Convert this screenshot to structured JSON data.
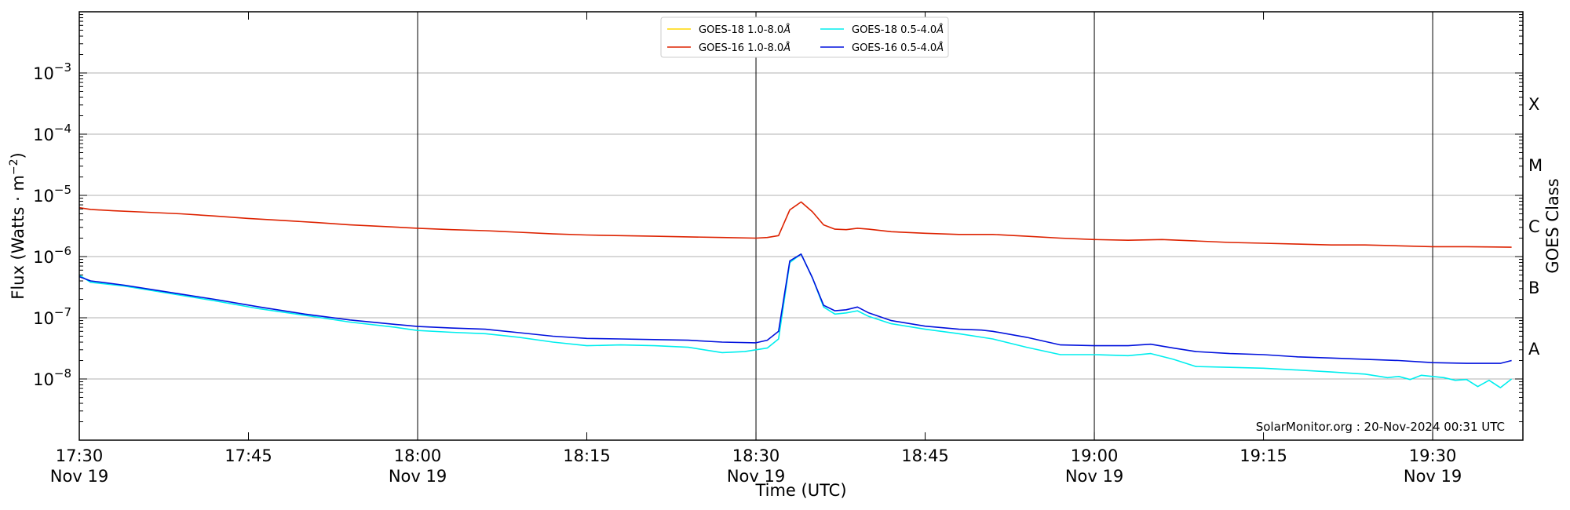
{
  "chart_data": {
    "type": "line",
    "xlabel": "Time (UTC)",
    "ylabel_main": "Flux (Watts · m",
    "ylabel_exp": "−2",
    "ylabel_close": ")",
    "right_axis_label": "GOES Class",
    "x_range_minutes": [
      0,
      128
    ],
    "y_log_range": [
      -9,
      -2
    ],
    "x_ticks": [
      {
        "t": 0,
        "time": "17:30",
        "date": "Nov 19"
      },
      {
        "t": 15,
        "time": "17:45",
        "date": ""
      },
      {
        "t": 30,
        "time": "18:00",
        "date": "Nov 19"
      },
      {
        "t": 45,
        "time": "18:15",
        "date": ""
      },
      {
        "t": 60,
        "time": "18:30",
        "date": "Nov 19"
      },
      {
        "t": 75,
        "time": "18:45",
        "date": ""
      },
      {
        "t": 90,
        "time": "19:00",
        "date": "Nov 19"
      },
      {
        "t": 105,
        "time": "19:15",
        "date": ""
      },
      {
        "t": 120,
        "time": "19:30",
        "date": "Nov 19"
      }
    ],
    "vertical_lines": [
      30,
      60,
      90,
      120
    ],
    "y_ticks": [
      {
        "exp": -8,
        "base": "10",
        "sup": "−8"
      },
      {
        "exp": -7,
        "base": "10",
        "sup": "−7"
      },
      {
        "exp": -6,
        "base": "10",
        "sup": "−6"
      },
      {
        "exp": -5,
        "base": "10",
        "sup": "−5"
      },
      {
        "exp": -4,
        "base": "10",
        "sup": "−4"
      },
      {
        "exp": -3,
        "base": "10",
        "sup": "−3"
      }
    ],
    "goes_classes": [
      {
        "label": "A",
        "exp": -7.5
      },
      {
        "label": "B",
        "exp": -6.5
      },
      {
        "label": "C",
        "exp": -5.5
      },
      {
        "label": "M",
        "exp": -4.5
      },
      {
        "label": "X",
        "exp": -3.5
      }
    ],
    "grid": "horizontal",
    "legend_position": "top-center",
    "credit": "SolarMonitor.org : 20-Nov-2024 00:31 UTC",
    "series": [
      {
        "name": "GOES-18 1.0-8.0",
        "name_unit": "Å",
        "color": "#ffd700",
        "points": []
      },
      {
        "name": "GOES-16 1.0-8.0",
        "name_unit": "Å",
        "color": "#dd2200",
        "points": [
          [
            0,
            6.3e-06
          ],
          [
            1,
            5.9e-06
          ],
          [
            3,
            5.6e-06
          ],
          [
            6,
            5.3e-06
          ],
          [
            9,
            5e-06
          ],
          [
            12,
            4.6e-06
          ],
          [
            15,
            4.2e-06
          ],
          [
            18,
            3.9e-06
          ],
          [
            21,
            3.6e-06
          ],
          [
            24,
            3.3e-06
          ],
          [
            27,
            3.1e-06
          ],
          [
            30,
            2.9e-06
          ],
          [
            33,
            2.75e-06
          ],
          [
            36,
            2.65e-06
          ],
          [
            39,
            2.5e-06
          ],
          [
            42,
            2.35e-06
          ],
          [
            45,
            2.25e-06
          ],
          [
            48,
            2.2e-06
          ],
          [
            51,
            2.15e-06
          ],
          [
            54,
            2.1e-06
          ],
          [
            57,
            2.05e-06
          ],
          [
            60,
            2e-06
          ],
          [
            61,
            2.05e-06
          ],
          [
            62,
            2.2e-06
          ],
          [
            63,
            5.8e-06
          ],
          [
            64,
            7.8e-06
          ],
          [
            65,
            5.4e-06
          ],
          [
            66,
            3.3e-06
          ],
          [
            67,
            2.8e-06
          ],
          [
            68,
            2.75e-06
          ],
          [
            69,
            2.9e-06
          ],
          [
            70,
            2.8e-06
          ],
          [
            72,
            2.55e-06
          ],
          [
            75,
            2.4e-06
          ],
          [
            78,
            2.3e-06
          ],
          [
            81,
            2.3e-06
          ],
          [
            84,
            2.15e-06
          ],
          [
            87,
            2e-06
          ],
          [
            90,
            1.9e-06
          ],
          [
            93,
            1.85e-06
          ],
          [
            96,
            1.9e-06
          ],
          [
            99,
            1.8e-06
          ],
          [
            102,
            1.7e-06
          ],
          [
            105,
            1.65e-06
          ],
          [
            108,
            1.6e-06
          ],
          [
            111,
            1.55e-06
          ],
          [
            114,
            1.55e-06
          ],
          [
            117,
            1.5e-06
          ],
          [
            120,
            1.45e-06
          ],
          [
            123,
            1.45e-06
          ],
          [
            127,
            1.42e-06
          ]
        ]
      },
      {
        "name": "GOES-18 0.5-4.0",
        "name_unit": "Å",
        "color": "#00eeee",
        "points": [
          [
            0,
            5e-07
          ],
          [
            1,
            3.8e-07
          ],
          [
            4,
            3.3e-07
          ],
          [
            8,
            2.5e-07
          ],
          [
            12,
            1.9e-07
          ],
          [
            16,
            1.4e-07
          ],
          [
            20,
            1.1e-07
          ],
          [
            24,
            8.5e-08
          ],
          [
            28,
            7e-08
          ],
          [
            30,
            6.2e-08
          ],
          [
            33,
            5.8e-08
          ],
          [
            36,
            5.5e-08
          ],
          [
            39,
            4.8e-08
          ],
          [
            42,
            4e-08
          ],
          [
            45,
            3.5e-08
          ],
          [
            48,
            3.6e-08
          ],
          [
            51,
            3.5e-08
          ],
          [
            54,
            3.3e-08
          ],
          [
            57,
            2.7e-08
          ],
          [
            59,
            2.8e-08
          ],
          [
            60,
            3e-08
          ],
          [
            61,
            3.2e-08
          ],
          [
            62,
            4.5e-08
          ],
          [
            63,
            8e-07
          ],
          [
            64,
            1.1e-06
          ],
          [
            65,
            4.5e-07
          ],
          [
            66,
            1.5e-07
          ],
          [
            67,
            1.15e-07
          ],
          [
            68,
            1.2e-07
          ],
          [
            69,
            1.3e-07
          ],
          [
            70,
            1.05e-07
          ],
          [
            72,
            8e-08
          ],
          [
            75,
            6.5e-08
          ],
          [
            78,
            5.5e-08
          ],
          [
            81,
            4.5e-08
          ],
          [
            84,
            3.3e-08
          ],
          [
            87,
            2.5e-08
          ],
          [
            90,
            2.5e-08
          ],
          [
            93,
            2.4e-08
          ],
          [
            95,
            2.6e-08
          ],
          [
            97,
            2.1e-08
          ],
          [
            99,
            1.6e-08
          ],
          [
            102,
            1.55e-08
          ],
          [
            105,
            1.5e-08
          ],
          [
            108,
            1.4e-08
          ],
          [
            111,
            1.3e-08
          ],
          [
            114,
            1.2e-08
          ],
          [
            116,
            1.05e-08
          ],
          [
            117,
            1.1e-08
          ],
          [
            118,
            9.8e-09
          ],
          [
            119,
            1.15e-08
          ],
          [
            120,
            1.1e-08
          ],
          [
            121,
            1.05e-08
          ],
          [
            122,
            9.5e-09
          ],
          [
            123,
            9.8e-09
          ],
          [
            124,
            7.5e-09
          ],
          [
            125,
            9.5e-09
          ],
          [
            126,
            7.2e-09
          ],
          [
            127,
            1e-08
          ]
        ]
      },
      {
        "name": "GOES-16 0.5-4.0",
        "name_unit": "Å",
        "color": "#0011dd",
        "points": [
          [
            0,
            4.7e-07
          ],
          [
            1,
            4e-07
          ],
          [
            4,
            3.4e-07
          ],
          [
            8,
            2.6e-07
          ],
          [
            12,
            2e-07
          ],
          [
            16,
            1.5e-07
          ],
          [
            20,
            1.15e-07
          ],
          [
            24,
            9.2e-08
          ],
          [
            28,
            7.8e-08
          ],
          [
            30,
            7.2e-08
          ],
          [
            33,
            6.8e-08
          ],
          [
            36,
            6.5e-08
          ],
          [
            39,
            5.7e-08
          ],
          [
            42,
            5e-08
          ],
          [
            45,
            4.6e-08
          ],
          [
            48,
            4.5e-08
          ],
          [
            51,
            4.4e-08
          ],
          [
            54,
            4.3e-08
          ],
          [
            57,
            4e-08
          ],
          [
            60,
            3.9e-08
          ],
          [
            61,
            4.3e-08
          ],
          [
            62,
            6e-08
          ],
          [
            63,
            8.5e-07
          ],
          [
            64,
            1.1e-06
          ],
          [
            65,
            4.5e-07
          ],
          [
            66,
            1.6e-07
          ],
          [
            67,
            1.3e-07
          ],
          [
            68,
            1.35e-07
          ],
          [
            69,
            1.5e-07
          ],
          [
            70,
            1.2e-07
          ],
          [
            72,
            9e-08
          ],
          [
            75,
            7.3e-08
          ],
          [
            78,
            6.5e-08
          ],
          [
            80,
            6.3e-08
          ],
          [
            81,
            6e-08
          ],
          [
            84,
            4.8e-08
          ],
          [
            87,
            3.6e-08
          ],
          [
            90,
            3.5e-08
          ],
          [
            93,
            3.5e-08
          ],
          [
            95,
            3.7e-08
          ],
          [
            97,
            3.2e-08
          ],
          [
            99,
            2.8e-08
          ],
          [
            102,
            2.6e-08
          ],
          [
            105,
            2.5e-08
          ],
          [
            108,
            2.3e-08
          ],
          [
            111,
            2.2e-08
          ],
          [
            114,
            2.1e-08
          ],
          [
            117,
            2e-08
          ],
          [
            120,
            1.85e-08
          ],
          [
            123,
            1.8e-08
          ],
          [
            126,
            1.8e-08
          ],
          [
            127,
            2e-08
          ]
        ]
      }
    ]
  }
}
